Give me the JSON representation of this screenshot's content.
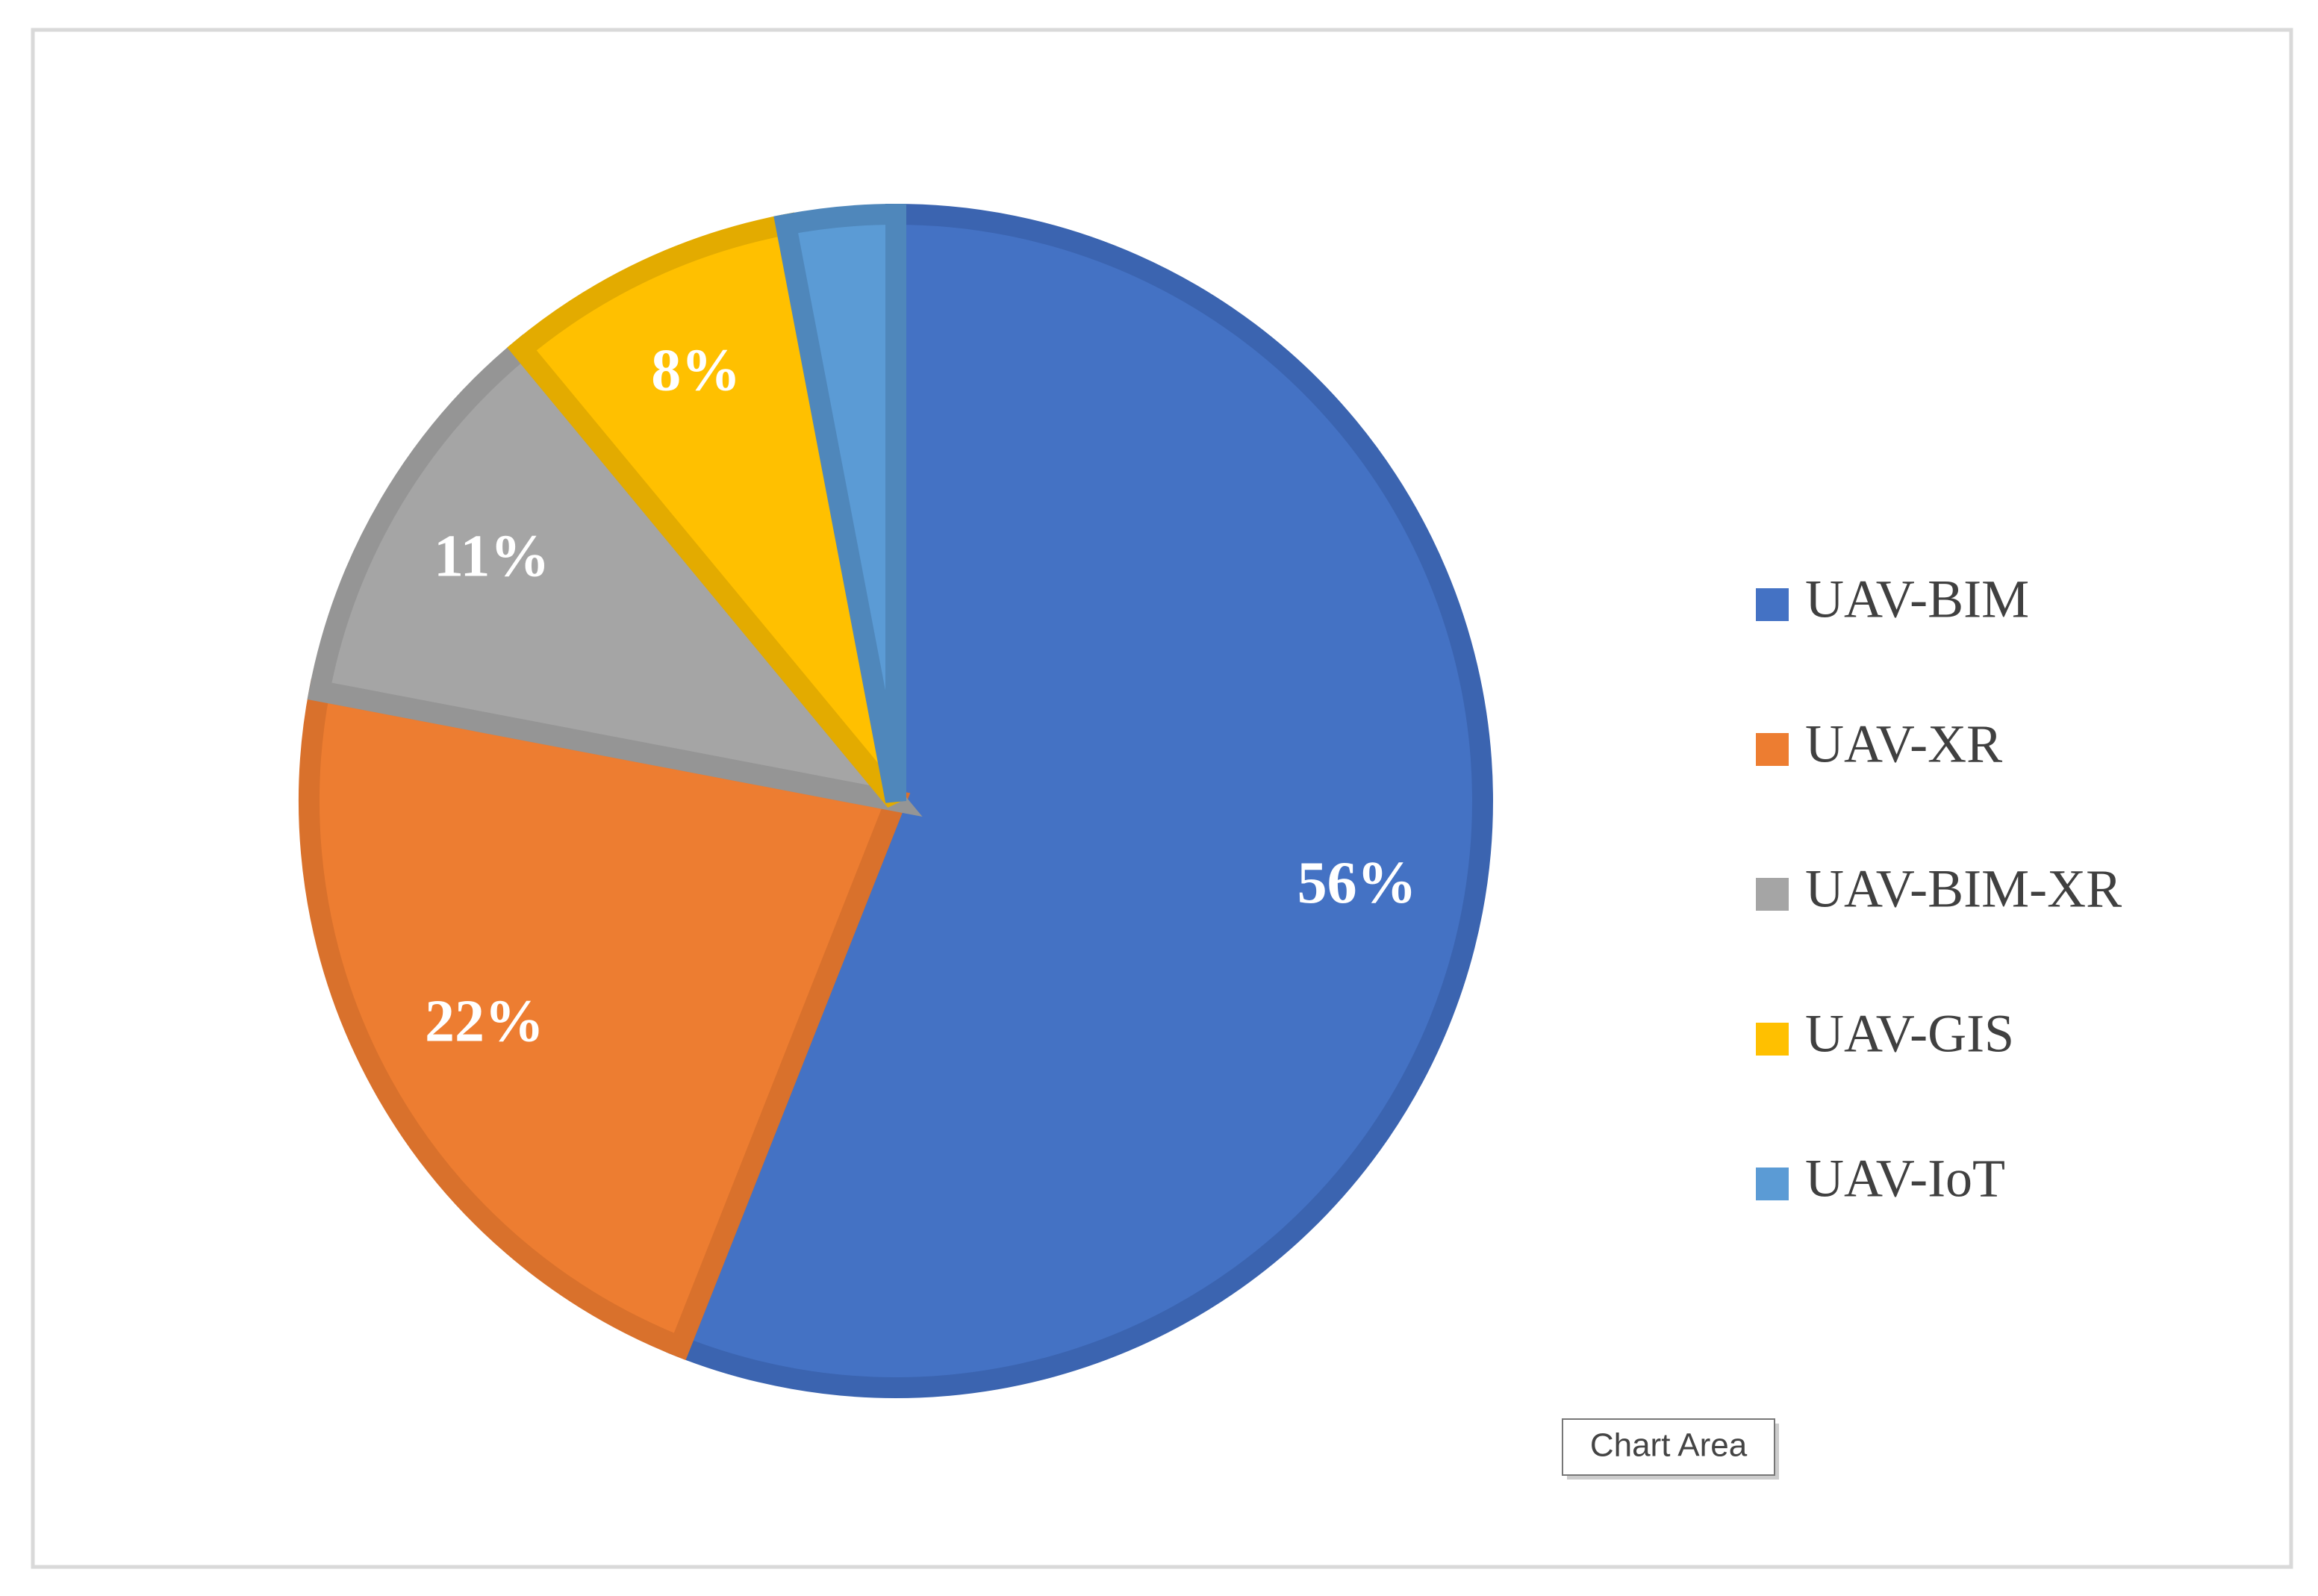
{
  "chart_data": {
    "type": "pie",
    "categories": [
      "UAV-BIM",
      "UAV-XR",
      "UAV-BIM-XR",
      "UAV-GIS",
      "UAV-IoT"
    ],
    "values": [
      56,
      22,
      11,
      8,
      3
    ],
    "value_labels": [
      "56%",
      "22%",
      "11%",
      "8%",
      null
    ],
    "colors": [
      "#4472c4",
      "#ed7d31",
      "#a5a5a5",
      "#ffc000",
      "#5b9bd5"
    ],
    "border_colors": [
      "#3b64b0",
      "#d9712c",
      "#959595",
      "#e3ab00",
      "#4f87bb"
    ],
    "legend": "right",
    "tooltip": "Chart Area"
  }
}
